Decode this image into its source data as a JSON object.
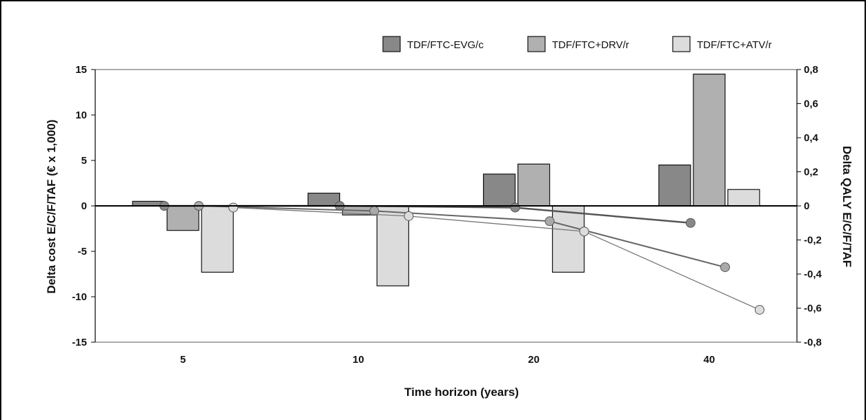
{
  "chart_data": {
    "type": "bar",
    "categories": [
      "5",
      "10",
      "20",
      "40"
    ],
    "xlabel": "Time horizon (years)",
    "ylabel_left": "Delta cost E/C/F/TAF (€ x 1,000)",
    "ylabel_right": "Delta QALY E/C/F/TAF",
    "ylim_left": [
      -15,
      15
    ],
    "ylim_right": [
      -0.8,
      0.8
    ],
    "yticks_left": [
      "15",
      "10",
      "5",
      "0",
      "-5",
      "-10",
      "-15"
    ],
    "yticks_right": [
      "0,8",
      "0,6",
      "0,4",
      "0,2",
      "0",
      "-0,2",
      "-0,4",
      "-0,6",
      "-0,8"
    ],
    "legend_position": "top-right",
    "bar_series": [
      {
        "name": "TDF/FTC-EVG/c",
        "color": "#888888",
        "values": [
          0.5,
          1.4,
          3.5,
          4.5
        ]
      },
      {
        "name": "TDF/FTC+DRV/r",
        "color": "#b0b0b0",
        "values": [
          -2.7,
          -1.0,
          4.6,
          14.5
        ]
      },
      {
        "name": "TDF/FTC+ATV/r",
        "color": "#dcdcdc",
        "values": [
          -7.3,
          -8.8,
          -7.3,
          1.8
        ]
      }
    ],
    "line_series": [
      {
        "color": "#888888",
        "line_color": "#555555",
        "values": [
          0.0,
          0.0,
          -0.01,
          -0.1
        ]
      },
      {
        "color": "#aaaaaa",
        "line_color": "#666666",
        "values": [
          0.0,
          -0.03,
          -0.09,
          -0.36
        ]
      },
      {
        "color": "#dcdcdc",
        "line_color": "#777777",
        "values": [
          -0.01,
          -0.06,
          -0.15,
          -0.61
        ]
      }
    ]
  }
}
